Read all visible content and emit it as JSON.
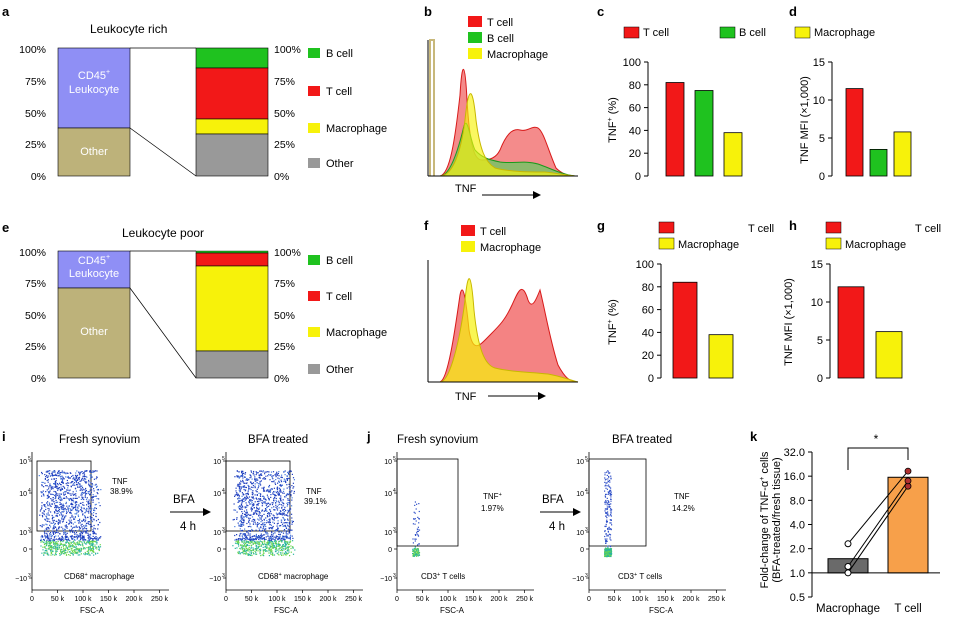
{
  "colors": {
    "cd45": "#8f8ff5",
    "other_left": "#bdb27a",
    "bcell": "#1fc21f",
    "tcell": "#f21818",
    "macrophage": "#f7f20a",
    "other": "#999999",
    "bar_gray": "#6a6a6a",
    "bar_orange": "#f7a04a",
    "dot_dark": "#b03030"
  },
  "panel_a": {
    "letter": "a",
    "title": "Leukocyte rich",
    "left_axis_ticks": [
      "100%",
      "75%",
      "50%",
      "25%",
      "0%"
    ],
    "right_axis_ticks": [
      "100%",
      "75%",
      "50%",
      "25%",
      "0%"
    ],
    "cd45_label": "CD45",
    "cd45_sup": "+",
    "leukocyte_label": "Leukocyte",
    "other_label": "Other",
    "left_segments": [
      {
        "name": "Other",
        "value": 38
      },
      {
        "name": "CD45+ Leukocyte",
        "value": 62
      }
    ],
    "right_segments": [
      {
        "name": "Other",
        "value": 33
      },
      {
        "name": "Macrophage",
        "value": 13
      },
      {
        "name": "T cell",
        "value": 38
      },
      {
        "name": "B cell",
        "value": 16
      }
    ],
    "legend": [
      "B cell",
      "T cell",
      "Macrophage",
      "Other"
    ]
  },
  "panel_e": {
    "letter": "e",
    "title": "Leukocyte poor",
    "left_axis_ticks": [
      "100%",
      "75%",
      "50%",
      "25%",
      "0%"
    ],
    "right_axis_ticks": [
      "100%",
      "75%",
      "50%",
      "25%",
      "0%"
    ],
    "cd45_label": "CD45",
    "cd45_sup": "+",
    "leukocyte_label": "Leukocyte",
    "other_label": "Other",
    "left_segments": [
      {
        "name": "Other",
        "value": 71
      },
      {
        "name": "CD45+ Leukocyte",
        "value": 29
      }
    ],
    "right_segments": [
      {
        "name": "Other",
        "value": 22
      },
      {
        "name": "Macrophage",
        "value": 67
      },
      {
        "name": "T cell",
        "value": 10
      },
      {
        "name": "B cell",
        "value": 1
      }
    ],
    "legend": [
      "B cell",
      "T cell",
      "Macrophage",
      "Other"
    ]
  },
  "panel_b": {
    "letter": "b",
    "legend": [
      "T cell",
      "B cell",
      "Macrophage"
    ],
    "xlabel": "TNF"
  },
  "panel_f": {
    "letter": "f",
    "legend": [
      "T cell",
      "Macrophage"
    ],
    "xlabel": "TNF"
  },
  "chart_data": [
    {
      "panel": "c",
      "type": "bar",
      "categories": [
        "T cell",
        "B cell",
        "Macrophage"
      ],
      "values": [
        82,
        75,
        38
      ],
      "ylabel": "TNF",
      "ylabel_sup": "+",
      "ylabel_unit": " (%)",
      "ylim": [
        0,
        100
      ],
      "yticks": [
        "0",
        "20",
        "40",
        "60",
        "80",
        "100"
      ],
      "legend": [
        "T cell",
        "B cell",
        "Macrophage"
      ],
      "letter": "c"
    },
    {
      "panel": "d",
      "type": "bar",
      "categories": [
        "T cell",
        "B cell",
        "Macrophage"
      ],
      "values": [
        11.5,
        3.5,
        5.8
      ],
      "ylabel": "TNF MFI (×1,000)",
      "ylim": [
        0,
        15
      ],
      "yticks": [
        "0",
        "5",
        "10",
        "15"
      ],
      "legend": [
        "Macrophage"
      ],
      "letter": "d"
    },
    {
      "panel": "g",
      "type": "bar",
      "categories": [
        "T cell",
        "Macrophage"
      ],
      "values": [
        84,
        38
      ],
      "ylabel": "TNF",
      "ylabel_sup": "+",
      "ylabel_unit": " (%)",
      "ylim": [
        0,
        100
      ],
      "yticks": [
        "0",
        "20",
        "40",
        "60",
        "80",
        "100"
      ],
      "legend": [
        "T cell",
        "Macrophage"
      ],
      "letter": "g"
    },
    {
      "panel": "h",
      "type": "bar",
      "categories": [
        "T cell",
        "Macrophage"
      ],
      "values": [
        12,
        6.1
      ],
      "ylabel": "TNF MFI (×1,000)",
      "ylim": [
        0,
        15
      ],
      "yticks": [
        "0",
        "5",
        "10",
        "15"
      ],
      "legend": [
        "T cell",
        "Macrophage"
      ],
      "letter": "h"
    },
    {
      "panel": "k",
      "type": "bar",
      "categories": [
        "Macrophage",
        "T cell"
      ],
      "values": [
        1.5,
        15.5
      ],
      "ylabel_line1": "Fold-change of TNF-α",
      "ylabel_sup": "+",
      "ylabel_line1_end": " cells",
      "ylabel_line2": "(BFA-treated/fresh tissue)",
      "yscale": "log2",
      "ylim": [
        0.5,
        32
      ],
      "yticks": [
        "0.5",
        "1.0",
        "2.0",
        "4.0",
        "8.0",
        "16.0",
        "32.0"
      ],
      "paired_points": [
        [
          1.0,
          12.0
        ],
        [
          1.2,
          14.0
        ],
        [
          2.3,
          18.5
        ]
      ],
      "significance": "*",
      "letter": "k"
    }
  ],
  "panel_i": {
    "letter": "i",
    "plot1": {
      "title": "Fresh synovium",
      "gate_label": "TNF",
      "gate_pct": "38.9%",
      "population": "CD68",
      "population_sup": "+",
      "population_end": " macrophage"
    },
    "plot2": {
      "title": "BFA treated",
      "gate_label": "TNF",
      "gate_pct": "39.1%",
      "population": "CD68",
      "population_sup": "+",
      "population_end": " macrophage"
    },
    "arrow_label": "BFA",
    "arrow_time": "4 h",
    "xlabel": "FSC-A",
    "xticks": [
      "0",
      "50 k",
      "100 k",
      "150 k",
      "200 k",
      "250 k"
    ],
    "yticks": [
      "10",
      "10",
      "10",
      "0",
      "−10"
    ],
    "yexp": [
      "5",
      "4",
      "3",
      "",
      "3"
    ]
  },
  "panel_j": {
    "letter": "j",
    "plot1": {
      "title": "Fresh synovium",
      "gate_label": "TNF",
      "gate_sup": "+",
      "gate_pct": "1.97%",
      "population": "CD3",
      "population_sup": "+",
      "population_end": " T cells"
    },
    "plot2": {
      "title": "BFA treated",
      "gate_label": "TNF",
      "gate_pct": "14.2%",
      "population": "CD3",
      "population_sup": "+",
      "population_end": " T cells"
    },
    "arrow_label": "BFA",
    "arrow_time": "4 h",
    "xlabel": "FSC-A",
    "xticks": [
      "0",
      "50 k",
      "100 k",
      "150 k",
      "200 k",
      "250 k"
    ],
    "yticks": [
      "10",
      "10",
      "10",
      "0",
      "−10"
    ],
    "yexp": [
      "5",
      "4",
      "3",
      "",
      "3"
    ]
  }
}
